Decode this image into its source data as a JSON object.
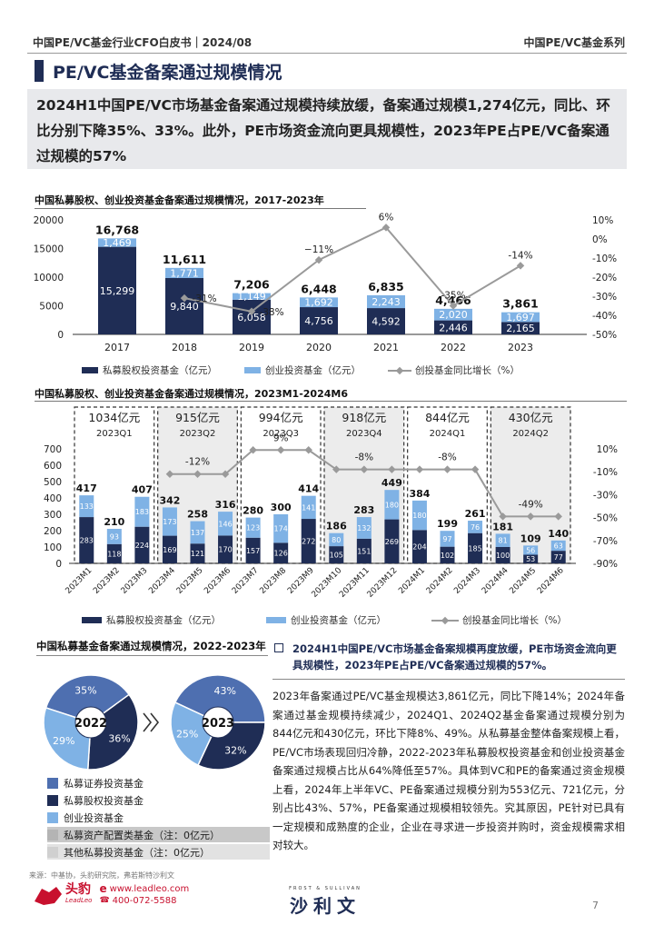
{
  "header": {
    "left": "中国PE/VC基金行业CFO白皮书｜2024/08",
    "right": "中国PE/VC基金系列"
  },
  "section_title": "PE/VC基金备案通过规模情况",
  "summary": "2024H1中国PE/VC市场基金备案通过规模持续放缓，备案通过规模1,274亿元，同比、环比分别下降35%、33%。此外，PE市场资金流向更具规模性，2023年PE占PE/VC备案通过规模的57%",
  "chart_data": [
    {
      "type": "bar",
      "title": "中国私募股权、创业投资基金备案通过规模情况，2017-2023年",
      "categories": [
        "2017",
        "2018",
        "2019",
        "2020",
        "2021",
        "2022",
        "2023"
      ],
      "series": [
        {
          "name": "私募股权投资基金（亿元）",
          "values": [
            15299,
            9840,
            6058,
            4756,
            4592,
            2446,
            2165
          ],
          "labels": [
            "15,299",
            "9,840",
            "6,058",
            "4,756",
            "4,592",
            "2,446",
            "2,165"
          ]
        },
        {
          "name": "创业投资基金（亿元）",
          "values": [
            1469,
            1771,
            1149,
            1692,
            2243,
            2020,
            1697
          ],
          "labels": [
            "1,469",
            "1,771",
            "1,149",
            "1,692",
            "2,243",
            "2,020",
            "1,697"
          ]
        },
        {
          "name": "创投基金同比增长（%）",
          "values": [
            null,
            -31,
            -38,
            -11,
            6,
            -35,
            -14
          ],
          "labels": [
            "",
            "-31%",
            "-38%",
            "−11%",
            "6%",
            "-35%",
            "-14%"
          ]
        }
      ],
      "totals": [
        "16,768",
        "11,611",
        "7,206",
        "6,448",
        "6,835",
        "4,466",
        "3,861"
      ],
      "y_ticks": [
        "0",
        "5000",
        "10000",
        "15000",
        "20000"
      ],
      "y2_ticks": [
        "-50%",
        "-40%",
        "-30%",
        "-20%",
        "-10%",
        "0%",
        "10%"
      ],
      "ylim": [
        0,
        20000
      ],
      "y2lim": [
        -50,
        10
      ]
    },
    {
      "type": "bar",
      "title": "中国私募股权、创业投资基金备案通过规模情况，2023M1-2024M6",
      "categories": [
        "2023M1",
        "2023M2",
        "2023M3",
        "2023M4",
        "2023M5",
        "2023M6",
        "2023M7",
        "2023M8",
        "2023M9",
        "2023M10",
        "2023M11",
        "2023M12",
        "2024M1",
        "2024M2",
        "2024M3",
        "2024M4",
        "2024M5",
        "2024M6"
      ],
      "series": [
        {
          "name": "私募股权投资基金（亿元）",
          "values": [
            283,
            118,
            224,
            169,
            121,
            170,
            157,
            126,
            272,
            105,
            151,
            269,
            204,
            102,
            185,
            100,
            53,
            77
          ]
        },
        {
          "name": "创业投资基金（亿元）",
          "values": [
            133,
            93,
            183,
            173,
            137,
            146,
            123,
            174,
            141,
            80,
            132,
            180,
            180,
            97,
            76,
            81,
            56,
            63
          ]
        },
        {
          "name": "创投基金同比增长（%）",
          "values": [
            null,
            null,
            null,
            -12,
            -12,
            -12,
            9,
            9,
            9,
            -8,
            -8,
            -8,
            -8,
            -8,
            -8,
            -49,
            -49,
            -49
          ]
        }
      ],
      "totals": [
        417,
        210,
        407,
        342,
        258,
        316,
        280,
        300,
        414,
        186,
        283,
        449,
        384,
        199,
        261,
        181,
        109,
        140
      ],
      "quarters": [
        {
          "amount": "1034亿元",
          "label": "2023Q1",
          "growth": ""
        },
        {
          "amount": "915亿元",
          "label": "2023Q2",
          "growth": "-12%"
        },
        {
          "amount": "994亿元",
          "label": "2023Q3",
          "growth": "9%"
        },
        {
          "amount": "918亿元",
          "label": "2023Q4",
          "growth": "-8%"
        },
        {
          "amount": "844亿元",
          "label": "2024Q1",
          "growth": "-8%"
        },
        {
          "amount": "430亿元",
          "label": "2024Q2",
          "growth": "-49%"
        }
      ],
      "y_ticks": [
        "0",
        "100",
        "200",
        "300",
        "400",
        "500",
        "600",
        "700"
      ],
      "y2_ticks": [
        "-90%",
        "-70%",
        "-50%",
        "-30%",
        "-10%",
        "10%"
      ],
      "ylim": [
        0,
        700
      ],
      "y2lim": [
        -90,
        10
      ]
    },
    {
      "type": "pie",
      "title": "中国私募基金备案通过规模情况，2022-2023年",
      "pies": [
        {
          "label": "2022",
          "slices": [
            {
              "name": "私募证券投资基金",
              "value": 35,
              "label": "35%"
            },
            {
              "name": "私募股权投资基金",
              "value": 36,
              "label": "36%"
            },
            {
              "name": "创业投资基金",
              "value": 29,
              "label": "29%"
            }
          ]
        },
        {
          "label": "2023",
          "slices": [
            {
              "name": "私募证券投资基金",
              "value": 43,
              "label": "43%"
            },
            {
              "name": "私募股权投资基金",
              "value": 32,
              "label": "32%"
            },
            {
              "name": "创业投资基金",
              "value": 25,
              "label": "25%"
            }
          ]
        }
      ],
      "legend": [
        "私募证券投资基金",
        "私募股权投资基金",
        "创业投资基金",
        "私募资产配置类基金（注：0亿元）",
        "其他私募投资基金（注：0亿元）"
      ]
    }
  ],
  "colors": {
    "navy": "#1f2d55",
    "light_blue": "#7fb2e5",
    "mid_blue": "#4e6fb0",
    "gray_line": "#9a9a9a",
    "legend_gray": "#c8c8c8",
    "legend_gray2": "#e2e2e2"
  },
  "right_panel": {
    "title": "2024H1中国PE/VC市场基金备案规模再度放缓，PE市场资金流向更具规模性，2023年PE占PE/VC备案通过规模的57%。",
    "body": "2023年备案通过PE/VC基金规模达3,861亿元，同比下降14%；2024年备案通过基金规模持续减少，2024Q1、2024Q2基金备案通过规模分别为844亿元和430亿元，环比下降8%、49%。从私募基金整体备案规模上看，PE/VC市场表现回归冷静，2022-2023年私募股权投资基金和创业投资基金备案通过规模占比从64%降低至57%。具体到VC和PE的备案通过资金规模上看，2024年上半年VC、PE备案通过规模分别为553亿元、721亿元，分别占比43%、57%，PE备案通过规模相较领先。究其原因，PE针对已具有一定规模和成熟度的企业，企业在寻求进一步投资并购时，资金规模需求相对较大。"
  },
  "footer": {
    "source": "来源：中基协，头豹研究院，弗若斯特沙利文",
    "logo_text": "头豹",
    "logo_sub": "LeadLeo",
    "website": "www.leadleo.com",
    "phone": "400-072-5588",
    "fs_top": "FROST & SULLIVAN",
    "fs_text": "沙利文",
    "page": "7"
  }
}
